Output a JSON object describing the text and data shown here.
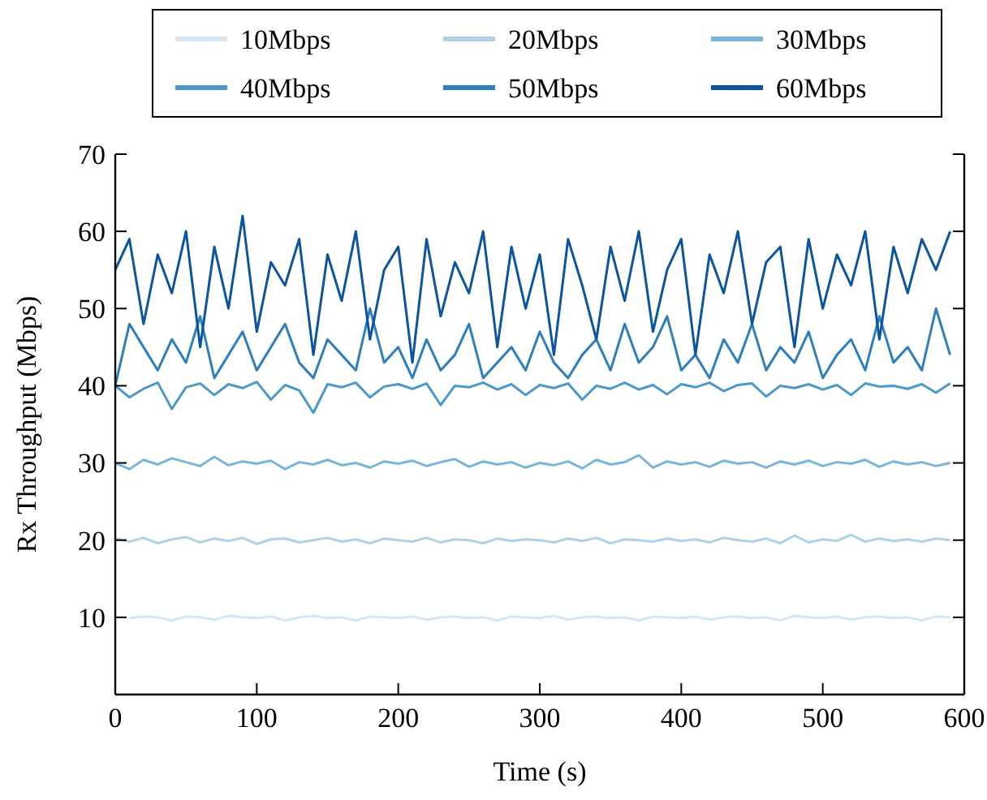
{
  "chart_data": {
    "type": "line",
    "xlabel": "Time (s)",
    "ylabel": "Rx Throughput (Mbps)",
    "x": [
      0,
      10,
      20,
      30,
      40,
      50,
      60,
      70,
      80,
      90,
      100,
      110,
      120,
      130,
      140,
      150,
      160,
      170,
      180,
      190,
      200,
      210,
      220,
      230,
      240,
      250,
      260,
      270,
      280,
      290,
      300,
      310,
      320,
      330,
      340,
      350,
      360,
      370,
      380,
      390,
      400,
      410,
      420,
      430,
      440,
      450,
      460,
      470,
      480,
      490,
      500,
      510,
      520,
      530,
      540,
      550,
      560,
      570,
      580,
      590
    ],
    "xlim": [
      0,
      600
    ],
    "ylim": [
      0,
      70
    ],
    "xticks": [
      0,
      100,
      200,
      300,
      400,
      500,
      600
    ],
    "yticks": [
      {
        "value": 0,
        "label": null
      },
      10,
      20,
      30,
      40,
      50,
      60,
      70
    ],
    "legend": "top",
    "grid": false,
    "line_style": "solid",
    "marker": "none",
    "series": [
      {
        "name": "10Mbps",
        "color": "#d4e5f3",
        "values": [
          null,
          9.9,
          10.1,
          10,
          9.6,
          10.1,
          10,
          9.7,
          10.2,
          10,
          9.9,
          10.1,
          9.6,
          10,
          10.2,
          9.9,
          10,
          9.6,
          10.1,
          10,
          9.9,
          10.1,
          9.7,
          10,
          10.1,
          9.9,
          10,
          9.6,
          10.1,
          10,
          9.9,
          10.2,
          9.7,
          10,
          10.1,
          9.9,
          10,
          9.6,
          10.1,
          10,
          9.9,
          10.1,
          9.7,
          10,
          10.1,
          9.9,
          10,
          9.6,
          10.2,
          10,
          9.9,
          10.1,
          9.7,
          10,
          10.1,
          9.9,
          10,
          9.6,
          10.1,
          10
        ]
      },
      {
        "name": "20Mbps",
        "color": "#aed0e8",
        "values": [
          20.2,
          19.8,
          20.3,
          19.6,
          20.1,
          20.4,
          19.7,
          20.2,
          19.9,
          20.3,
          19.5,
          20.1,
          20.2,
          19.7,
          20,
          20.3,
          19.8,
          20.1,
          19.6,
          20.2,
          20,
          19.8,
          20.3,
          19.7,
          20.1,
          20,
          19.6,
          20.2,
          19.9,
          20.1,
          20,
          19.7,
          20.2,
          19.9,
          20.3,
          19.6,
          20.1,
          20,
          19.8,
          20.2,
          19.9,
          20.1,
          19.7,
          20.3,
          20,
          19.8,
          20.2,
          19.6,
          20.6,
          19.7,
          20.1,
          19.9,
          20.7,
          19.8,
          20.2,
          19.9,
          20.1,
          19.8,
          20.2,
          20
        ]
      },
      {
        "name": "30Mbps",
        "color": "#79b5d9",
        "values": [
          30,
          29.2,
          30.4,
          29.8,
          30.6,
          30.1,
          29.6,
          30.8,
          29.7,
          30.2,
          29.9,
          30.3,
          29.2,
          30.1,
          29.8,
          30.4,
          29.7,
          30,
          29.4,
          30.2,
          29.9,
          30.3,
          29.6,
          30.1,
          30.5,
          29.5,
          30.2,
          29.8,
          30.1,
          29.4,
          30,
          29.7,
          30.2,
          29.3,
          30.4,
          29.8,
          30.1,
          31,
          29.4,
          30.2,
          29.8,
          30.1,
          29.5,
          30.3,
          29.9,
          30.1,
          29.4,
          30.2,
          29.8,
          30.3,
          29.6,
          30.1,
          29.9,
          30.4,
          29.5,
          30.2,
          29.8,
          30.1,
          29.6,
          30
        ]
      },
      {
        "name": "40Mbps",
        "color": "#4b98ca",
        "values": [
          40,
          38.5,
          39.6,
          40.4,
          37,
          39.8,
          40.3,
          38.8,
          40.2,
          39.7,
          40.5,
          38.2,
          40.1,
          39.4,
          36.5,
          40.2,
          39.8,
          40.4,
          38.5,
          39.9,
          40.2,
          39.6,
          40.3,
          37.5,
          40,
          39.8,
          40.4,
          39.5,
          40.2,
          38.8,
          40.1,
          39.7,
          40.3,
          38.2,
          40,
          39.6,
          40.4,
          39.5,
          40.1,
          38.9,
          40.2,
          39.8,
          40.4,
          39.3,
          40.1,
          40.3,
          38.6,
          40,
          39.7,
          40.2,
          39.5,
          40.1,
          38.8,
          40.3,
          39.9,
          40,
          39.6,
          40.2,
          39.1,
          40.3
        ]
      },
      {
        "name": "50Mbps",
        "color": "#2f7ebd",
        "values": [
          40,
          48,
          45,
          42,
          46,
          43,
          49,
          41,
          44,
          47,
          42,
          45,
          48,
          43,
          41,
          46,
          44,
          42,
          50,
          43,
          45,
          41,
          46,
          42,
          44,
          48,
          41,
          43,
          45,
          42,
          47,
          43,
          41,
          44,
          46,
          42,
          48,
          43,
          45,
          49,
          42,
          44,
          41,
          46,
          43,
          48,
          42,
          45,
          43,
          47,
          41,
          44,
          46,
          42,
          49,
          43,
          45,
          42,
          50,
          44
        ]
      },
      {
        "name": "60Mbps",
        "color": "#0b559f",
        "values": [
          55,
          59,
          48,
          57,
          52,
          60,
          45,
          58,
          50,
          62,
          47,
          56,
          53,
          59,
          44,
          57,
          51,
          60,
          46,
          55,
          58,
          43,
          59,
          49,
          56,
          52,
          60,
          45,
          58,
          50,
          57,
          44,
          59,
          53,
          46,
          58,
          51,
          60,
          47,
          55,
          59,
          44,
          57,
          52,
          60,
          48,
          56,
          58,
          45,
          59,
          50,
          57,
          53,
          60,
          46,
          58,
          52,
          59,
          55,
          60
        ]
      }
    ]
  }
}
